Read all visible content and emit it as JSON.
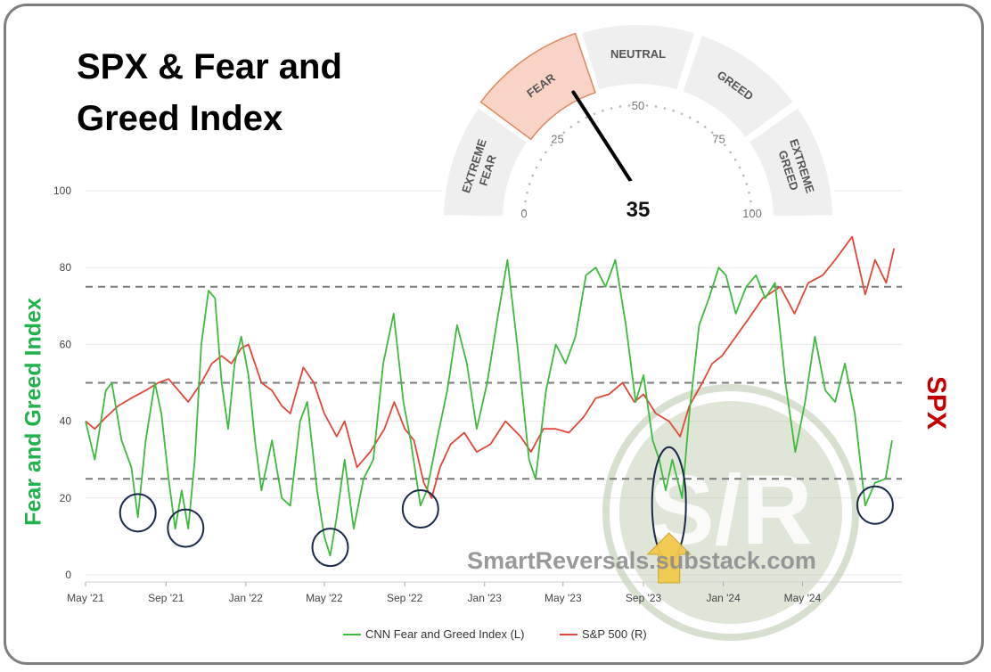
{
  "title": "SPX & Fear and\nGreed Index",
  "left_axis_label": "Fear and Greed Index",
  "right_axis_label": "SPX",
  "watermark": {
    "logo_text": "S/R",
    "url_text": "SmartReversals.substack.com",
    "logo_color": "#b7c7a6"
  },
  "gauge": {
    "value": 35,
    "value_label": "35",
    "segments": [
      "EXTREME\nFEAR",
      "FEAR",
      "NEUTRAL",
      "GREED",
      "EXTREME\nGREED"
    ],
    "active_segment": "FEAR",
    "scale_labels": [
      "0",
      "25",
      "50",
      "75",
      "100"
    ]
  },
  "colors": {
    "fear_greed": "#3dbb3d",
    "spx": "#e0473a",
    "gauge_active": "#f9d3c5",
    "gauge_active_border": "#d98a63",
    "gauge_bg": "#efefef",
    "highlight_circle": "#1b2a4a",
    "arrow": "#f2c94c"
  },
  "chart_data": {
    "type": "line",
    "ylim": [
      0,
      100
    ],
    "y_ticks": [
      0,
      20,
      40,
      60,
      80,
      100
    ],
    "x_range": [
      "2021-05-01",
      "2024-09-30"
    ],
    "x_ticks": [
      {
        "label": "May '21",
        "date": "2021-05-01"
      },
      {
        "label": "Sep '21",
        "date": "2021-09-01"
      },
      {
        "label": "Jan '22",
        "date": "2022-01-01"
      },
      {
        "label": "May '22",
        "date": "2022-05-01"
      },
      {
        "label": "Sep '22",
        "date": "2022-09-01"
      },
      {
        "label": "Jan '23",
        "date": "2023-01-01"
      },
      {
        "label": "May '23",
        "date": "2023-05-01"
      },
      {
        "label": "Sep '23",
        "date": "2023-09-01"
      },
      {
        "label": "Jan '24",
        "date": "2024-01-01"
      },
      {
        "label": "May '24",
        "date": "2024-05-01"
      }
    ],
    "reference_lines": [
      25,
      50,
      75
    ],
    "legend_position": "bottom-center",
    "series": [
      {
        "name": "CNN Fear and Greed Index (L)",
        "points": [
          [
            "2021-05-01",
            40
          ],
          [
            "2021-05-15",
            30
          ],
          [
            "2021-06-01",
            48
          ],
          [
            "2021-06-10",
            50
          ],
          [
            "2021-06-25",
            35
          ],
          [
            "2021-07-10",
            28
          ],
          [
            "2021-07-20",
            15
          ],
          [
            "2021-08-01",
            35
          ],
          [
            "2021-08-15",
            50
          ],
          [
            "2021-08-25",
            42
          ],
          [
            "2021-09-05",
            25
          ],
          [
            "2021-09-15",
            12
          ],
          [
            "2021-09-25",
            22
          ],
          [
            "2021-10-05",
            12
          ],
          [
            "2021-10-15",
            30
          ],
          [
            "2021-10-25",
            60
          ],
          [
            "2021-11-05",
            74
          ],
          [
            "2021-11-15",
            72
          ],
          [
            "2021-11-25",
            50
          ],
          [
            "2021-12-05",
            38
          ],
          [
            "2021-12-15",
            55
          ],
          [
            "2021-12-25",
            62
          ],
          [
            "2022-01-05",
            52
          ],
          [
            "2022-01-15",
            35
          ],
          [
            "2022-01-25",
            22
          ],
          [
            "2022-02-10",
            35
          ],
          [
            "2022-02-25",
            20
          ],
          [
            "2022-03-10",
            18
          ],
          [
            "2022-03-25",
            40
          ],
          [
            "2022-04-05",
            45
          ],
          [
            "2022-04-20",
            22
          ],
          [
            "2022-05-01",
            10
          ],
          [
            "2022-05-10",
            5
          ],
          [
            "2022-05-20",
            15
          ],
          [
            "2022-06-01",
            30
          ],
          [
            "2022-06-15",
            12
          ],
          [
            "2022-06-30",
            25
          ],
          [
            "2022-07-15",
            30
          ],
          [
            "2022-07-30",
            55
          ],
          [
            "2022-08-15",
            68
          ],
          [
            "2022-08-30",
            45
          ],
          [
            "2022-09-10",
            35
          ],
          [
            "2022-09-25",
            18
          ],
          [
            "2022-10-05",
            22
          ],
          [
            "2022-10-20",
            35
          ],
          [
            "2022-11-05",
            48
          ],
          [
            "2022-11-20",
            65
          ],
          [
            "2022-12-05",
            55
          ],
          [
            "2022-12-20",
            38
          ],
          [
            "2023-01-05",
            50
          ],
          [
            "2023-01-20",
            66
          ],
          [
            "2023-02-05",
            82
          ],
          [
            "2023-02-20",
            60
          ],
          [
            "2023-03-10",
            30
          ],
          [
            "2023-03-20",
            25
          ],
          [
            "2023-04-05",
            48
          ],
          [
            "2023-04-20",
            60
          ],
          [
            "2023-05-05",
            55
          ],
          [
            "2023-05-20",
            62
          ],
          [
            "2023-06-05",
            78
          ],
          [
            "2023-06-20",
            80
          ],
          [
            "2023-07-05",
            75
          ],
          [
            "2023-07-20",
            82
          ],
          [
            "2023-08-05",
            65
          ],
          [
            "2023-08-20",
            45
          ],
          [
            "2023-09-01",
            52
          ],
          [
            "2023-09-15",
            35
          ],
          [
            "2023-09-25",
            30
          ],
          [
            "2023-10-05",
            22
          ],
          [
            "2023-10-15",
            30
          ],
          [
            "2023-10-30",
            20
          ],
          [
            "2023-11-10",
            42
          ],
          [
            "2023-11-25",
            65
          ],
          [
            "2023-12-10",
            72
          ],
          [
            "2023-12-25",
            80
          ],
          [
            "2024-01-05",
            78
          ],
          [
            "2024-01-20",
            68
          ],
          [
            "2024-02-05",
            75
          ],
          [
            "2024-02-20",
            78
          ],
          [
            "2024-03-05",
            72
          ],
          [
            "2024-03-20",
            76
          ],
          [
            "2024-04-05",
            50
          ],
          [
            "2024-04-20",
            32
          ],
          [
            "2024-05-05",
            45
          ],
          [
            "2024-05-20",
            62
          ],
          [
            "2024-06-05",
            48
          ],
          [
            "2024-06-20",
            45
          ],
          [
            "2024-07-05",
            55
          ],
          [
            "2024-07-20",
            42
          ],
          [
            "2024-08-05",
            18
          ],
          [
            "2024-08-20",
            24
          ],
          [
            "2024-09-05",
            25
          ],
          [
            "2024-09-15",
            35
          ]
        ]
      },
      {
        "name": "S&P 500 (R)",
        "points": [
          [
            "2021-05-01",
            40
          ],
          [
            "2021-05-15",
            38
          ],
          [
            "2021-06-01",
            41
          ],
          [
            "2021-06-20",
            44
          ],
          [
            "2021-07-10",
            46
          ],
          [
            "2021-08-01",
            48
          ],
          [
            "2021-08-20",
            50
          ],
          [
            "2021-09-05",
            51
          ],
          [
            "2021-09-20",
            48
          ],
          [
            "2021-10-05",
            45
          ],
          [
            "2021-10-25",
            50
          ],
          [
            "2021-11-10",
            55
          ],
          [
            "2021-11-25",
            57
          ],
          [
            "2021-12-10",
            55
          ],
          [
            "2021-12-25",
            59
          ],
          [
            "2022-01-05",
            60
          ],
          [
            "2022-01-25",
            50
          ],
          [
            "2022-02-10",
            48
          ],
          [
            "2022-02-25",
            44
          ],
          [
            "2022-03-10",
            42
          ],
          [
            "2022-03-30",
            54
          ],
          [
            "2022-04-15",
            50
          ],
          [
            "2022-05-01",
            42
          ],
          [
            "2022-05-20",
            36
          ],
          [
            "2022-06-01",
            40
          ],
          [
            "2022-06-20",
            28
          ],
          [
            "2022-07-10",
            32
          ],
          [
            "2022-08-01",
            38
          ],
          [
            "2022-08-16",
            45
          ],
          [
            "2022-09-01",
            38
          ],
          [
            "2022-09-15",
            35
          ],
          [
            "2022-09-30",
            24
          ],
          [
            "2022-10-12",
            20
          ],
          [
            "2022-10-25",
            28
          ],
          [
            "2022-11-10",
            34
          ],
          [
            "2022-12-01",
            37
          ],
          [
            "2022-12-20",
            32
          ],
          [
            "2023-01-10",
            34
          ],
          [
            "2023-02-02",
            40
          ],
          [
            "2023-02-25",
            36
          ],
          [
            "2023-03-13",
            32
          ],
          [
            "2023-04-01",
            38
          ],
          [
            "2023-04-20",
            38
          ],
          [
            "2023-05-10",
            37
          ],
          [
            "2023-06-01",
            41
          ],
          [
            "2023-06-20",
            46
          ],
          [
            "2023-07-10",
            47
          ],
          [
            "2023-07-31",
            50
          ],
          [
            "2023-08-18",
            45
          ],
          [
            "2023-09-01",
            47
          ],
          [
            "2023-09-20",
            42
          ],
          [
            "2023-10-10",
            40
          ],
          [
            "2023-10-27",
            36
          ],
          [
            "2023-11-10",
            44
          ],
          [
            "2023-11-30",
            50
          ],
          [
            "2023-12-15",
            55
          ],
          [
            "2023-12-30",
            57
          ],
          [
            "2024-01-20",
            62
          ],
          [
            "2024-02-10",
            67
          ],
          [
            "2024-03-01",
            72
          ],
          [
            "2024-03-28",
            75
          ],
          [
            "2024-04-19",
            68
          ],
          [
            "2024-05-10",
            76
          ],
          [
            "2024-06-01",
            78
          ],
          [
            "2024-06-20",
            82
          ],
          [
            "2024-07-16",
            88
          ],
          [
            "2024-08-05",
            73
          ],
          [
            "2024-08-20",
            82
          ],
          [
            "2024-09-06",
            76
          ],
          [
            "2024-09-18",
            85
          ]
        ]
      }
    ],
    "annotations": {
      "circled_lows": [
        {
          "date": "2021-07-20",
          "value": 15
        },
        {
          "date": "2021-10-01",
          "value": 11
        },
        {
          "date": "2022-05-10",
          "value": 6
        },
        {
          "date": "2022-09-25",
          "value": 16
        },
        {
          "date": "2023-10-10",
          "value": 30
        },
        {
          "date": "2024-08-20",
          "value": 17
        }
      ],
      "arrow_date": "2023-10-10"
    }
  }
}
